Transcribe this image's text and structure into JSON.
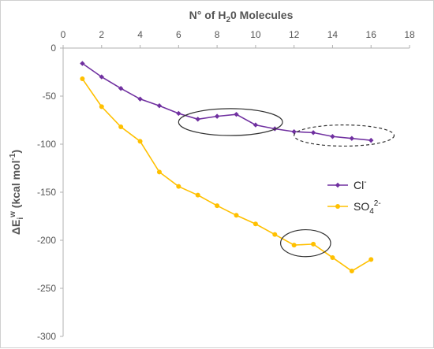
{
  "chart_data": {
    "type": "line",
    "xlabel": {
      "prefix": "N° of H",
      "sub": "2",
      "suffix": "0 Molecules"
    },
    "ylabel": {
      "prefix": "ΔE",
      "sub": "i",
      "sup": "w",
      "suffix": " (kcal mol",
      "sup2": "-1",
      "close": ")"
    },
    "xlim": [
      0,
      18
    ],
    "ylim": [
      -300,
      0
    ],
    "xticks": [
      0,
      2,
      4,
      6,
      8,
      10,
      12,
      14,
      16,
      18
    ],
    "yticks": [
      0,
      -50,
      -100,
      -150,
      -200,
      -250,
      -300
    ],
    "x_axis_position": "top",
    "grid": false,
    "legend_position": "right",
    "series": [
      {
        "name": "Cl",
        "name_sup": "-",
        "color": "#7030a0",
        "marker": "diamond",
        "x": [
          1,
          2,
          3,
          4,
          5,
          6,
          7,
          8,
          9,
          10,
          11,
          12,
          13,
          14,
          15,
          16
        ],
        "y": [
          -16,
          -30,
          -42,
          -53,
          -60,
          -68,
          -74,
          -71,
          -69,
          -80,
          -84,
          -87,
          -88,
          -92,
          -94,
          -96
        ]
      },
      {
        "name": "SO",
        "name_sub": "4",
        "name_sup": "2-",
        "color": "#ffc000",
        "marker": "circle",
        "x": [
          1,
          2,
          3,
          4,
          5,
          6,
          7,
          8,
          9,
          10,
          11,
          12,
          13,
          14,
          15,
          16
        ],
        "y": [
          -32,
          -61,
          -82,
          -97,
          -129,
          -144,
          -153,
          -164,
          -174,
          -183,
          -194,
          -205,
          -204,
          -218,
          -232,
          -220
        ]
      }
    ],
    "annotations": [
      {
        "type": "ellipse",
        "style": "solid",
        "cx": 8.7,
        "cy": -77,
        "rx": 2.7,
        "ry": 14
      },
      {
        "type": "ellipse",
        "style": "dashed",
        "cx": 14.6,
        "cy": -91,
        "rx": 2.6,
        "ry": 11
      },
      {
        "type": "ellipse",
        "style": "solid",
        "cx": 12.6,
        "cy": -203,
        "rx": 1.3,
        "ry": 14
      }
    ]
  }
}
